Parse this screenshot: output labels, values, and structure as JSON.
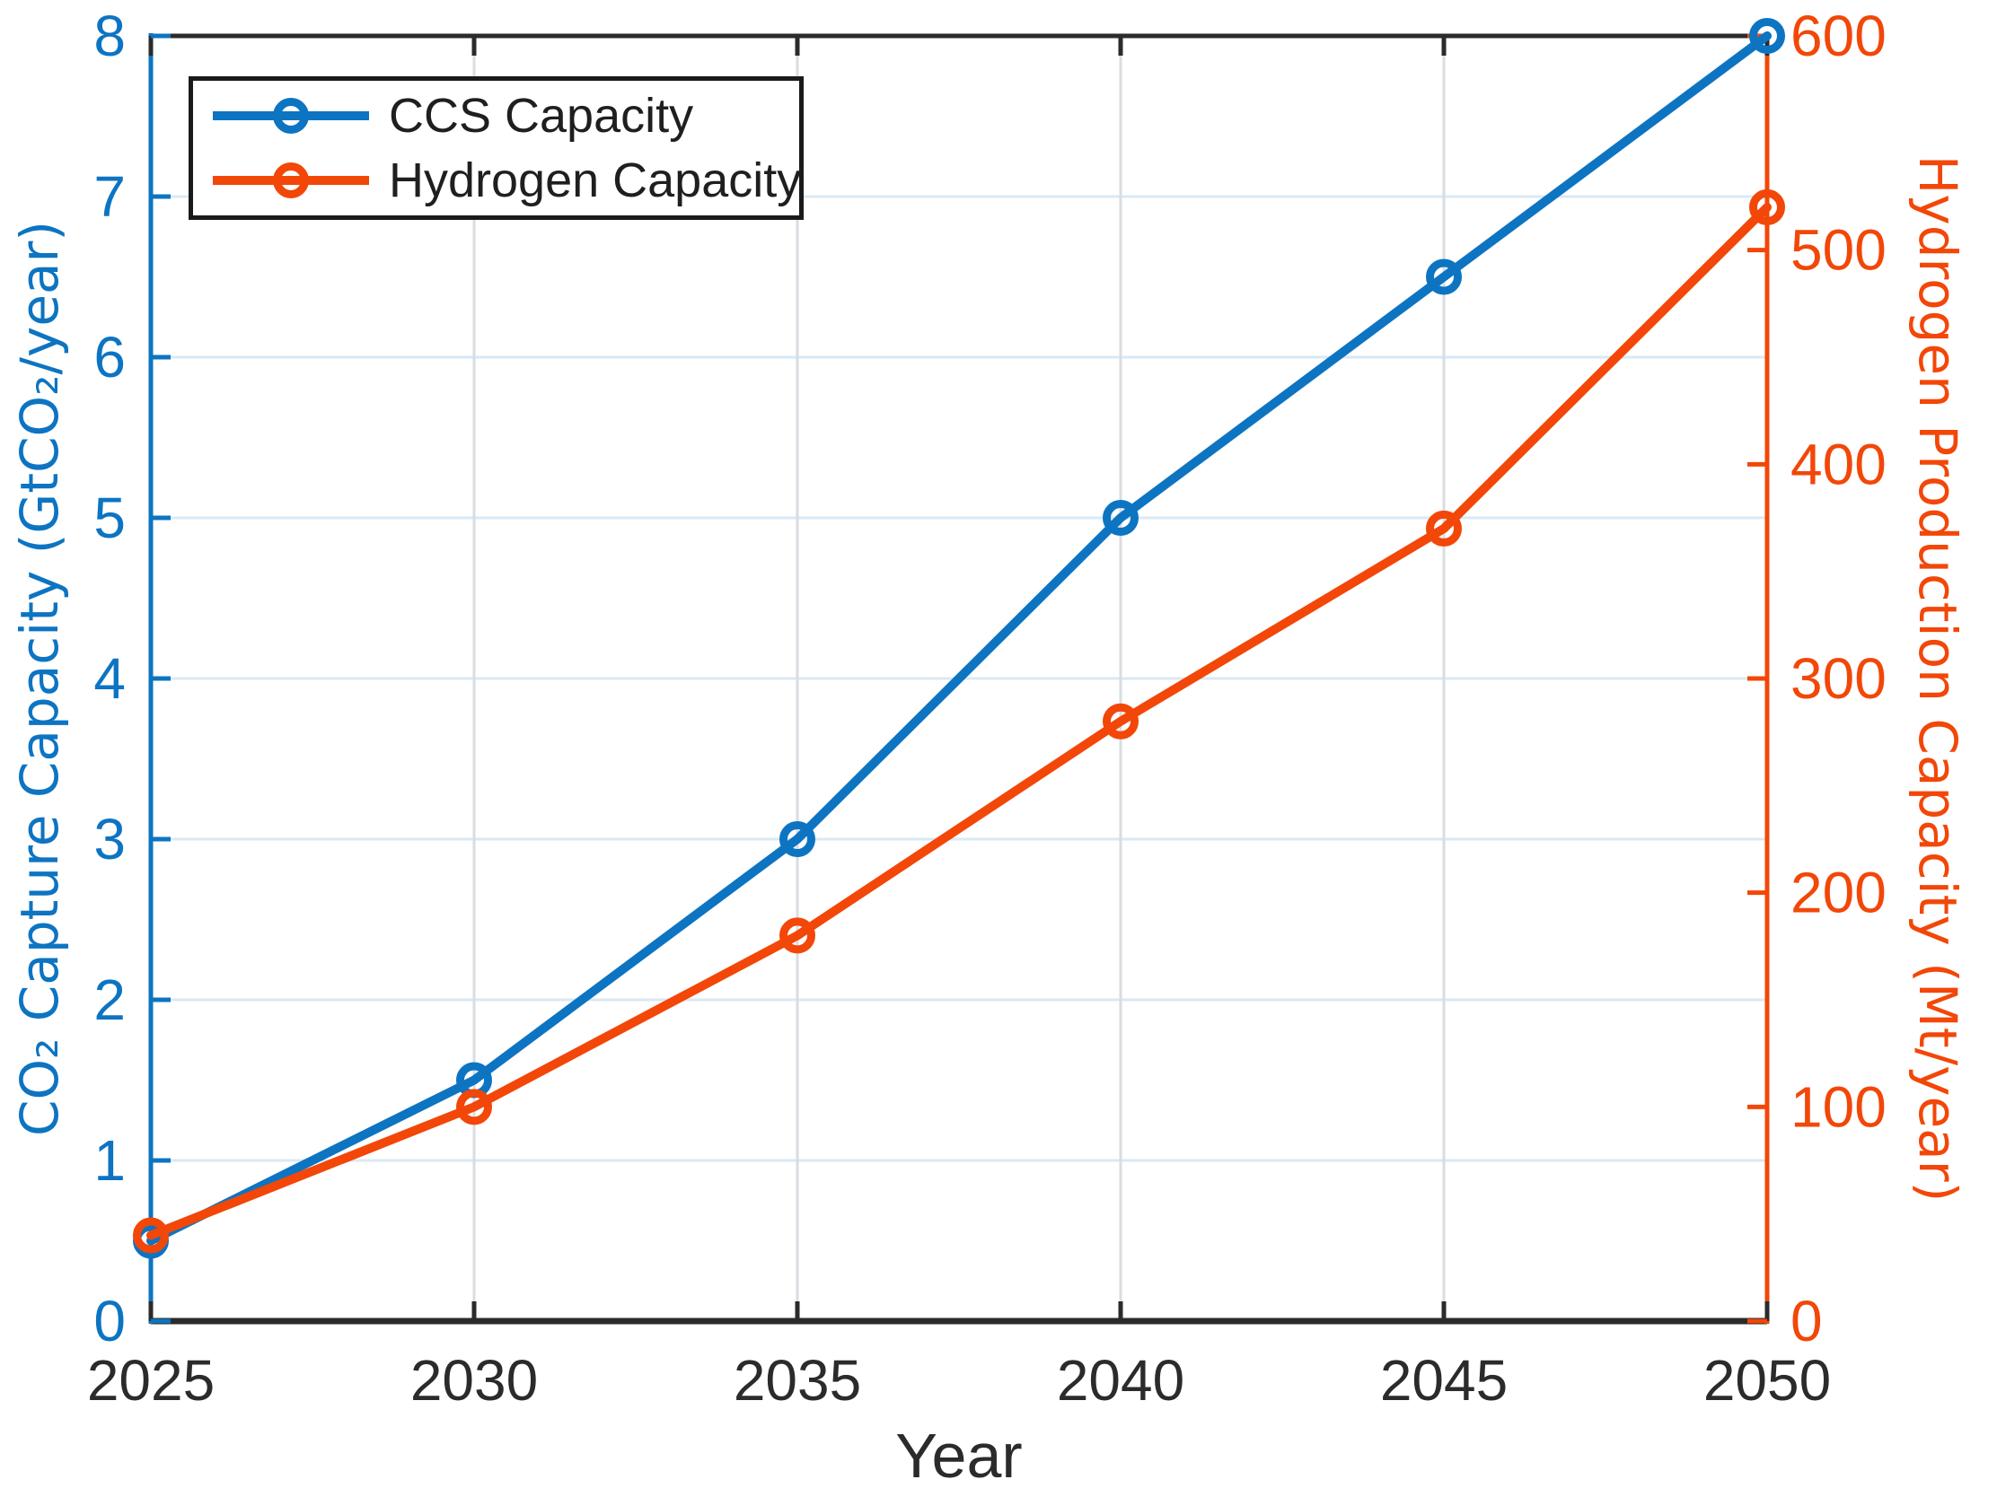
{
  "chart_data": {
    "type": "line",
    "title": "",
    "xlabel": "Year",
    "x": [
      2025,
      2030,
      2035,
      2040,
      2045,
      2050
    ],
    "x_tick_labels": [
      "2025",
      "2030",
      "2035",
      "2040",
      "2045",
      "2050"
    ],
    "series": [
      {
        "name": "CCS Capacity",
        "axis": "left",
        "color": "#0d74c2",
        "marker": "open-circle",
        "line_style": "solid",
        "values": [
          0.5,
          1.5,
          3.0,
          5.0,
          6.5,
          8.0
        ]
      },
      {
        "name": "Hydrogen Capacity",
        "axis": "right",
        "color": "#f24708",
        "marker": "open-circle",
        "line_style": "solid",
        "values": [
          40,
          100,
          180,
          280,
          370,
          520
        ]
      }
    ],
    "left_axis": {
      "label": "CO₂ Capture Capacity (GtCO₂/year)",
      "range": [
        0,
        8
      ],
      "tick_values": [
        0,
        1,
        2,
        3,
        4,
        5,
        6,
        7,
        8
      ],
      "tick_labels": [
        "0",
        "1",
        "2",
        "3",
        "4",
        "5",
        "6",
        "7",
        "8"
      ],
      "color": "#0d74c2"
    },
    "right_axis": {
      "label": "Hydrogen Production Capacity (Mt/year)",
      "range": [
        0,
        600
      ],
      "tick_values": [
        0,
        100,
        200,
        300,
        400,
        500,
        600
      ],
      "tick_labels": [
        "0",
        "100",
        "200",
        "300",
        "400",
        "500",
        "600"
      ],
      "color": "#f24708"
    },
    "grid": {
      "show": true,
      "horizontal_color": "#d9e9f6",
      "vertical_color": "#d8dde2"
    },
    "frame_color": "#2b2b2b",
    "x_tick_label_color": "#2b2b2b",
    "legend": {
      "position": "top-left",
      "items": [
        {
          "label": "CCS Capacity"
        },
        {
          "label": "Hydrogen Capacity"
        }
      ]
    }
  }
}
